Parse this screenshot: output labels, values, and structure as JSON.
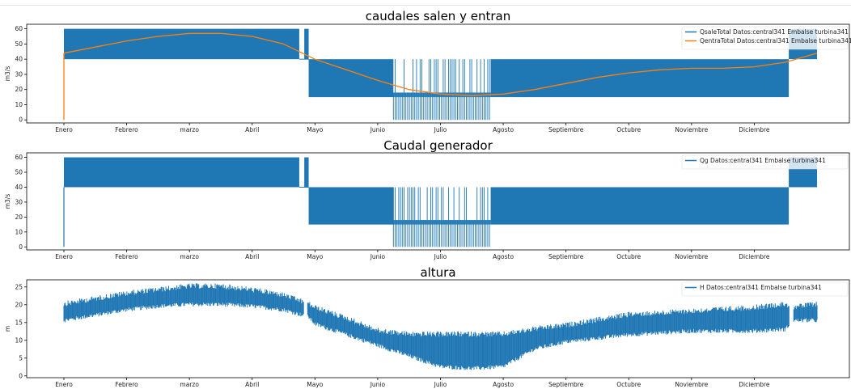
{
  "chart_data": [
    {
      "type": "line",
      "title": "caudales salen y entran",
      "ylabel": "m3/s",
      "ylim": [
        -2,
        63
      ],
      "yticks": [
        0,
        10,
        20,
        30,
        40,
        50,
        60
      ],
      "months": [
        "Enero",
        "Febrero",
        "marzo",
        "Abril",
        "Mayo",
        "Junio",
        "Julio",
        "Agosto",
        "Septiembre",
        "Octubre",
        "Noviembre",
        "Diciembre"
      ],
      "legend_position": "top-right",
      "band_series": {
        "name": "QsaleTotal Datos:central341 Embalse turbina341",
        "color": "#1f77b4",
        "segments": [
          {
            "from": 0.0,
            "to": 3.75,
            "low": 40,
            "high": 60
          },
          {
            "from": 3.83,
            "to": 3.9,
            "low": 40,
            "high": 60
          },
          {
            "from": 3.9,
            "to": 5.25,
            "low": 15,
            "high": 40
          },
          {
            "from": 5.25,
            "to": 6.8,
            "low": 0,
            "high": 18,
            "sparse": true
          },
          {
            "from": 6.8,
            "to": 11.55,
            "low": 15,
            "high": 40
          },
          {
            "from": 11.55,
            "to": 12.0,
            "low": 40,
            "high": 60
          }
        ]
      },
      "line_series": {
        "name": "QentraTotal Datos:central341 Embalse turbina341",
        "color": "#ff7f0e",
        "x": [
          0.0,
          0.5,
          1.0,
          1.5,
          2.0,
          2.5,
          3.0,
          3.5,
          4.0,
          4.5,
          5.0,
          5.5,
          6.0,
          6.5,
          7.0,
          7.5,
          8.0,
          8.5,
          9.0,
          9.5,
          10.0,
          10.5,
          11.0,
          11.5,
          12.0
        ],
        "y": [
          44,
          48,
          52,
          55,
          57,
          57,
          55,
          50,
          40,
          33,
          26,
          20,
          17,
          16,
          17,
          20,
          24,
          28,
          31,
          33,
          34,
          34,
          35,
          38,
          44
        ],
        "start_spike": [
          0,
          44
        ]
      }
    },
    {
      "type": "line",
      "title": "Caudal generador",
      "ylabel": "m3/s",
      "ylim": [
        -2,
        63
      ],
      "yticks": [
        0,
        10,
        20,
        30,
        40,
        50,
        60
      ],
      "months": [
        "Enero",
        "Febrero",
        "marzo",
        "Abril",
        "Mayo",
        "Junio",
        "Julio",
        "Agosto",
        "Septiembre",
        "Octubre",
        "Noviembre",
        "Diciembre"
      ],
      "legend_position": "top-right",
      "band_series": {
        "name": "Qg Datos:central341 Embalse turbina341",
        "color": "#1f77b4",
        "segments": [
          {
            "from": 0.0,
            "to": 3.75,
            "low": 40,
            "high": 60
          },
          {
            "from": 3.83,
            "to": 3.9,
            "low": 40,
            "high": 60
          },
          {
            "from": 3.9,
            "to": 5.25,
            "low": 15,
            "high": 40
          },
          {
            "from": 5.25,
            "to": 6.8,
            "low": 0,
            "high": 18,
            "sparse": true
          },
          {
            "from": 6.8,
            "to": 11.55,
            "low": 15,
            "high": 40
          },
          {
            "from": 11.55,
            "to": 12.0,
            "low": 40,
            "high": 60
          }
        ],
        "start_spike": [
          0,
          40
        ]
      }
    },
    {
      "type": "line",
      "title": "altura",
      "ylabel": "m",
      "ylim": [
        -0.5,
        27
      ],
      "yticks": [
        0,
        5,
        10,
        15,
        20,
        25
      ],
      "months": [
        "Enero",
        "Febrero",
        "marzo",
        "Abril",
        "Mayo",
        "Junio",
        "Julio",
        "Agosto",
        "Septiembre",
        "Octubre",
        "Noviembre",
        "Diciembre"
      ],
      "legend_position": "top-right",
      "band_series": {
        "name": "H Datos:central341 Embalse turbina341",
        "color": "#1f77b4",
        "x": [
          0.0,
          0.5,
          1.0,
          1.5,
          2.0,
          2.5,
          3.0,
          3.5,
          3.9,
          4.0,
          4.5,
          5.0,
          5.5,
          6.0,
          6.5,
          7.0,
          7.5,
          8.0,
          8.5,
          9.0,
          9.5,
          10.0,
          10.5,
          11.0,
          11.5,
          11.6,
          12.0
        ],
        "low": [
          15,
          16.5,
          18,
          19,
          19.5,
          19.5,
          19,
          18,
          16,
          14,
          11,
          8,
          5,
          2,
          1.5,
          2,
          7,
          9,
          10,
          11,
          11.5,
          12,
          12,
          12,
          12.5,
          15,
          15
        ],
        "high": [
          21,
          22.5,
          24,
          25,
          26,
          26,
          25,
          23.5,
          21,
          20,
          17,
          13.5,
          12.5,
          12.5,
          12.5,
          12.5,
          14,
          15,
          16.5,
          18,
          18.5,
          19,
          19.5,
          20,
          21,
          20,
          21
        ]
      }
    }
  ]
}
